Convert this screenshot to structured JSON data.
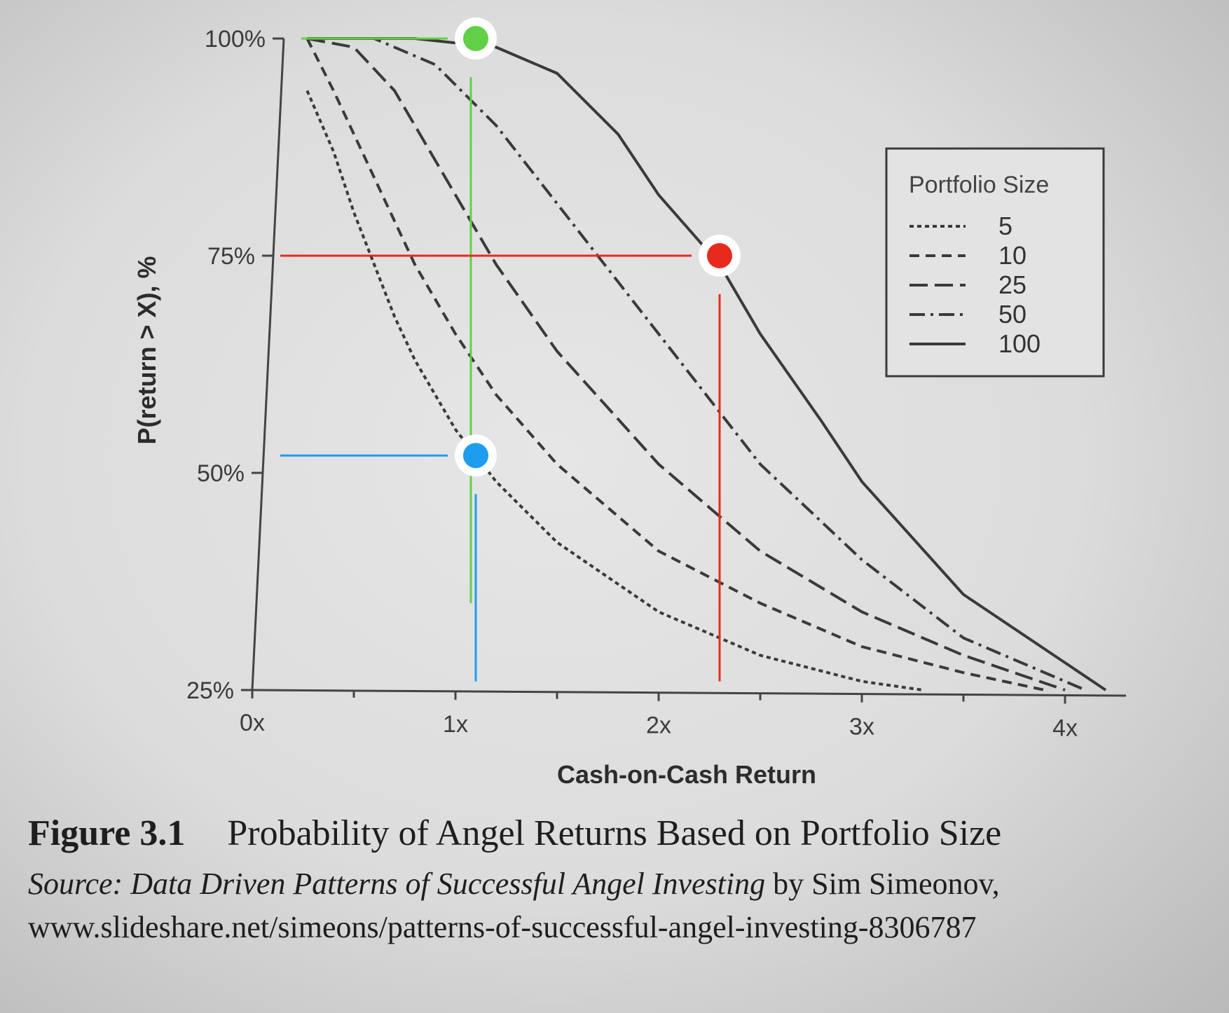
{
  "chart_data": {
    "type": "line",
    "xlabel": "Cash-on-Cash Return",
    "ylabel": "P(return > X), %",
    "x_tick_labels": [
      "0x",
      "1x",
      "2x",
      "3x",
      "4x"
    ],
    "x_ticks": [
      0,
      1,
      2,
      3,
      4
    ],
    "y_tick_labels": [
      "100%",
      "75%",
      "50%",
      "25%"
    ],
    "y_ticks": [
      100,
      75,
      50,
      25
    ],
    "xlim": [
      0,
      4.3
    ],
    "ylim": [
      25,
      100
    ],
    "legend": {
      "title": "Portfolio Size",
      "position": "top-right"
    },
    "series": [
      {
        "name": "5",
        "style": "dotted",
        "x": [
          0.27,
          0.4,
          0.5,
          0.6,
          0.7,
          0.8,
          1.0,
          1.2,
          1.5,
          2.0,
          2.5,
          3.0,
          3.3
        ],
        "y": [
          94,
          87,
          80,
          74,
          68,
          63,
          55,
          49,
          42,
          34,
          29,
          26,
          25
        ]
      },
      {
        "name": "10",
        "style": "short-dash",
        "x": [
          0.27,
          0.4,
          0.6,
          0.8,
          1.0,
          1.2,
          1.5,
          2.0,
          2.5,
          3.0,
          3.5,
          3.9
        ],
        "y": [
          100,
          94,
          84,
          74,
          66,
          59,
          51,
          41,
          35,
          30,
          27,
          25
        ]
      },
      {
        "name": "25",
        "style": "long-dash",
        "x": [
          0.27,
          0.5,
          0.7,
          1.0,
          1.2,
          1.5,
          2.0,
          2.5,
          3.0,
          3.5,
          4.0
        ],
        "y": [
          100,
          99,
          94,
          82,
          74,
          64,
          51,
          41,
          34,
          29,
          25
        ]
      },
      {
        "name": "50",
        "style": "dash-dot",
        "x": [
          0.27,
          0.6,
          0.9,
          1.2,
          1.5,
          1.8,
          2.0,
          2.3,
          2.5,
          3.0,
          3.5,
          4.1
        ],
        "y": [
          100,
          100,
          97,
          90,
          81,
          72,
          66,
          57,
          51,
          40,
          31,
          25
        ]
      },
      {
        "name": "100",
        "style": "solid",
        "x": [
          0.27,
          0.8,
          1.2,
          1.5,
          1.8,
          2.0,
          2.3,
          2.5,
          2.8,
          3.0,
          3.5,
          4.2
        ],
        "y": [
          100,
          100,
          99,
          96,
          89,
          82,
          74,
          66,
          56,
          49,
          36,
          25
        ]
      }
    ],
    "markers": [
      {
        "color": "#62d047",
        "x": 1.1,
        "y": 100
      },
      {
        "color": "#e82a1c",
        "x": 2.3,
        "y": 75
      },
      {
        "color": "#1e9cf0",
        "x": 1.1,
        "y": 52
      }
    ]
  },
  "caption": {
    "figure_number": "Figure 3.1",
    "figure_title": "Probability of Angel Returns Based on Portfolio Size",
    "source_label": "Source:",
    "source_title": "Data Driven Patterns of Successful Angel Investing",
    "source_author": "by Sim Simeonov,",
    "source_url": "www.slideshare.net/simeons/patterns-of-successful-angel-investing-8306787"
  }
}
